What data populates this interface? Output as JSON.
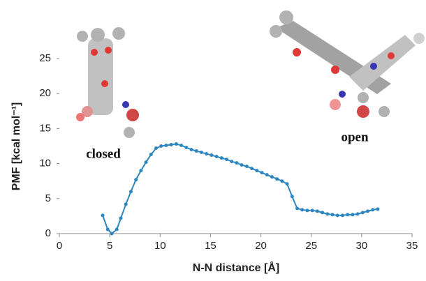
{
  "chart_data": {
    "type": "line",
    "x_label": "N-N distance [Å]",
    "y_label": "PMF [kcal mol⁻¹]",
    "annotations": [
      "closed",
      "open"
    ],
    "x": [
      4.3,
      4.8,
      5.2,
      5.7,
      6.1,
      6.6,
      7.1,
      7.6,
      8.1,
      8.6,
      9.1,
      9.6,
      10.1,
      10.6,
      11.1,
      11.6,
      12.1,
      12.6,
      13.1,
      13.6,
      14.1,
      14.6,
      15.1,
      15.6,
      16.1,
      16.6,
      17.1,
      17.6,
      18.1,
      18.6,
      19.1,
      19.6,
      20.1,
      20.6,
      21.1,
      21.6,
      22.1,
      22.6,
      23.1,
      23.6,
      24.1,
      24.6,
      25.1,
      25.6,
      26.1,
      26.6,
      27.1,
      27.6,
      28.1,
      28.6,
      29.1,
      29.6,
      30.1,
      30.6,
      31.1,
      31.6
    ],
    "series": [
      {
        "color": "#2e86c1",
        "values": [
          2.6,
          0.6,
          0.0,
          0.6,
          2.2,
          4.2,
          6.0,
          7.7,
          9.0,
          10.2,
          11.3,
          12.2,
          12.5,
          12.6,
          12.7,
          12.8,
          12.6,
          12.3,
          12.0,
          11.8,
          11.6,
          11.4,
          11.2,
          11.0,
          10.8,
          10.6,
          10.3,
          10.1,
          9.8,
          9.6,
          9.3,
          9.0,
          8.7,
          8.4,
          8.1,
          7.8,
          7.5,
          7.1,
          5.3,
          3.6,
          3.4,
          3.3,
          3.3,
          3.2,
          3.0,
          2.8,
          2.7,
          2.6,
          2.6,
          2.7,
          2.7,
          2.8,
          3.0,
          3.2,
          3.4,
          3.5
        ]
      }
    ],
    "xlim": [
      0,
      35
    ],
    "xticks": [
      0,
      5,
      10,
      15,
      20,
      25,
      30,
      35
    ],
    "ylim": [
      0,
      25
    ],
    "yticks": [
      0,
      5,
      10,
      15,
      20,
      25
    ]
  }
}
